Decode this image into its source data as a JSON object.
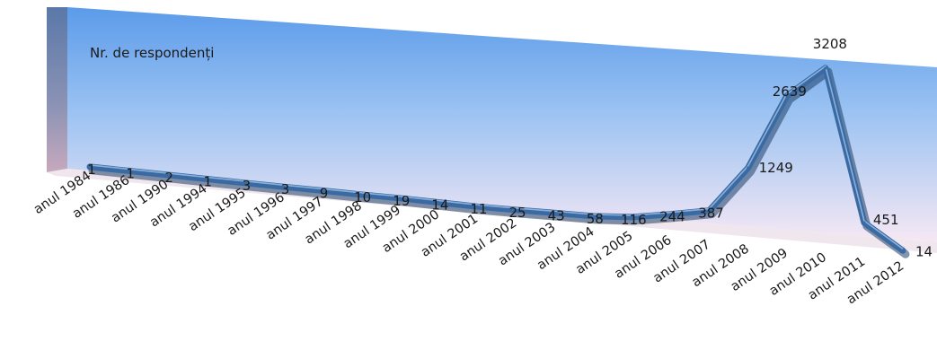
{
  "chart_data": {
    "type": "line",
    "title": "",
    "series_label": "Nr. de respondenți",
    "xlabel": "",
    "ylabel": "",
    "categories": [
      "anul 1984",
      "anul 1986",
      "anul 1990",
      "anul 1994",
      "anul 1995",
      "anul 1996",
      "anul 1997",
      "anul 1998",
      "anul 1999",
      "anul 2000",
      "anul 2001",
      "anul 2002",
      "anul 2003",
      "anul 2004",
      "anul 2005",
      "anul 2006",
      "anul 2007",
      "anul 2008",
      "anul 2009",
      "anul 2010",
      "anul 2011",
      "anul 2012"
    ],
    "values": [
      1,
      1,
      2,
      1,
      3,
      3,
      9,
      10,
      19,
      14,
      11,
      25,
      43,
      58,
      116,
      244,
      387,
      1249,
      2639,
      3208,
      451,
      14
    ],
    "ylim": [
      0,
      3300
    ],
    "grid": false,
    "legend": "none",
    "style": "3d-perspective",
    "colors": {
      "line": "#3a6aa3",
      "line_shadow": "#1f3f66",
      "wall_top": "#5b9bea",
      "wall_bottom": "#f6e8f4",
      "side_wall_top": "#5a78a8",
      "side_wall_bottom": "#c7a9bd"
    }
  }
}
